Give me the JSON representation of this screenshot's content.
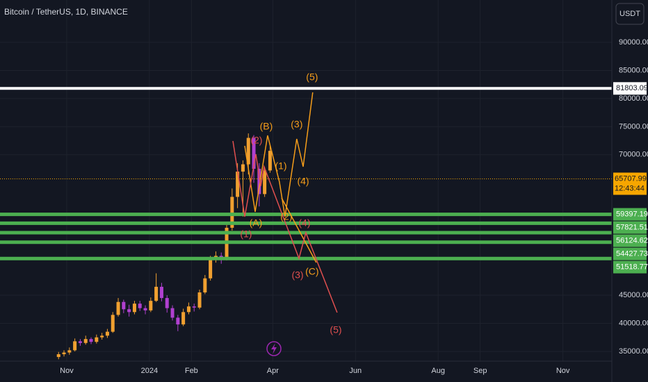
{
  "chart_data": {
    "type": "candlestick",
    "title": "Bitcoin / TetherUS, 1D, BINANCE",
    "currency": "USDT",
    "up_color": "#f0a030",
    "down_color": "#b040d0",
    "x": [
      -6,
      -2,
      2,
      6,
      10,
      14,
      18,
      22,
      26,
      30,
      34,
      38,
      42,
      46,
      50,
      54,
      58,
      62,
      66,
      70,
      74,
      78,
      82,
      86,
      90,
      94,
      98,
      102,
      106,
      110,
      114,
      118,
      122,
      126,
      130,
      134,
      138,
      142,
      146,
      150
    ],
    "ohlc": [
      [
        34000,
        34900,
        33600,
        34500
      ],
      [
        34500,
        35200,
        34100,
        34800
      ],
      [
        34800,
        35700,
        34400,
        35200
      ],
      [
        35200,
        37300,
        35000,
        36800
      ],
      [
        36800,
        37200,
        36000,
        36500
      ],
      [
        36500,
        37800,
        36200,
        37200
      ],
      [
        37200,
        37500,
        36300,
        36700
      ],
      [
        36700,
        38000,
        36400,
        37500
      ],
      [
        37500,
        38300,
        37100,
        37800
      ],
      [
        37800,
        39000,
        37400,
        38500
      ],
      [
        38500,
        42000,
        38300,
        41500
      ],
      [
        41500,
        44500,
        41200,
        43800
      ],
      [
        43800,
        44200,
        41800,
        42500
      ],
      [
        42500,
        43300,
        41200,
        42000
      ],
      [
        42000,
        44000,
        41600,
        43500
      ],
      [
        43500,
        44000,
        42200,
        42700
      ],
      [
        42700,
        43200,
        41600,
        42300
      ],
      [
        42300,
        44600,
        42000,
        44000
      ],
      [
        44000,
        48900,
        43800,
        46500
      ],
      [
        46500,
        47200,
        43900,
        44500
      ],
      [
        44500,
        45000,
        41900,
        42700
      ],
      [
        42700,
        43200,
        40500,
        41000
      ],
      [
        41000,
        41500,
        38600,
        39800
      ],
      [
        39800,
        42600,
        39500,
        42000
      ],
      [
        42000,
        43700,
        41600,
        43000
      ],
      [
        43000,
        43500,
        42100,
        42800
      ],
      [
        42800,
        46000,
        42500,
        45500
      ],
      [
        45500,
        48600,
        45200,
        48000
      ],
      [
        48000,
        52000,
        47600,
        51500
      ],
      [
        51500,
        52800,
        50800,
        52000
      ],
      [
        52000,
        52600,
        50600,
        51700
      ],
      [
        51700,
        57500,
        51200,
        57000
      ],
      [
        57000,
        64000,
        56500,
        62500
      ],
      [
        62500,
        68500,
        60500,
        67000
      ],
      [
        67000,
        69000,
        59000,
        68300
      ],
      [
        68300,
        73800,
        66500,
        73000
      ],
      [
        73000,
        73500,
        65000,
        67500
      ],
      [
        67500,
        68500,
        60800,
        63000
      ],
      [
        63000,
        67800,
        62500,
        67200
      ],
      [
        67200,
        71800,
        66800,
        70700
      ]
    ],
    "xlim": [
      -49.2,
      402.1
    ],
    "ylim": [
      29554,
      97540
    ],
    "xticks": [
      {
        "value": 0,
        "label": "Nov"
      },
      {
        "value": 61,
        "label": "2024"
      },
      {
        "value": 92,
        "label": "Feb"
      },
      {
        "value": 152,
        "label": "Apr"
      },
      {
        "value": 213,
        "label": "Jun"
      },
      {
        "value": 274,
        "label": "Aug"
      },
      {
        "value": 305,
        "label": "Sep"
      },
      {
        "value": 366,
        "label": "Nov"
      }
    ],
    "yticks": [
      {
        "value": 35000,
        "label": "35000.00"
      },
      {
        "value": 40000,
        "label": "40000.00"
      },
      {
        "value": 45000,
        "label": "45000.00"
      },
      {
        "value": 70000,
        "label": "70000.00"
      },
      {
        "value": 75000,
        "label": "75000.00"
      },
      {
        "value": 80000,
        "label": "80000.00"
      },
      {
        "value": 85000,
        "label": "85000.00"
      },
      {
        "value": 90000,
        "label": "90000.00"
      }
    ],
    "grid": true,
    "levels": [
      {
        "value": 81803.09,
        "color": "#ffffff"
      },
      {
        "value": 59397.19,
        "color": "#4caf50"
      },
      {
        "value": 57821.51,
        "color": "#4caf50"
      },
      {
        "value": 56124.62,
        "color": "#4caf50"
      },
      {
        "value": 54427.73,
        "color": "#4caf50"
      },
      {
        "value": 51518.77,
        "color": "#4caf50"
      }
    ],
    "last_price": {
      "value": 65707.99,
      "countdown": "12:43:44",
      "color": "#f7a600"
    },
    "waves": [
      {
        "color": "#f59d1a",
        "points": [
          [
            131.3,
            71584
          ],
          [
            139,
            59842
          ],
          [
            148.2,
            73438
          ],
          [
            156.9,
            65156
          ],
          [
            161,
            58976
          ],
          [
            169.7,
            72820
          ],
          [
            174.4,
            67876
          ],
          [
            181.5,
            81101
          ]
        ]
      },
      {
        "color": "#f59d1a",
        "points": [
          [
            158.5,
            62314
          ],
          [
            184.1,
            50819
          ]
        ]
      },
      {
        "color": "#e04f4f",
        "points": [
          [
            122.6,
            72449
          ],
          [
            131.3,
            58976
          ],
          [
            139.5,
            70100
          ],
          [
            143.1,
            64414
          ],
          [
            145.6,
            67876
          ],
          [
            171.3,
            51560
          ],
          [
            176.4,
            56133
          ],
          [
            199.5,
            41919
          ]
        ]
      }
    ],
    "wave_labels": [
      {
        "text": "(B)",
        "x": 147.2,
        "y": 74921,
        "color": "#f59d1a"
      },
      {
        "text": "(A)",
        "x": 139.5,
        "y": 57740,
        "color": "#f59d1a"
      },
      {
        "text": "(1)",
        "x": 158,
        "y": 67876,
        "color": "#f59d1a"
      },
      {
        "text": "(2)",
        "x": 162,
        "y": 58852,
        "color": "#f59d1a"
      },
      {
        "text": "(3)",
        "x": 169.7,
        "y": 75292,
        "color": "#f59d1a"
      },
      {
        "text": "(4)",
        "x": 174.4,
        "y": 65156,
        "color": "#f59d1a"
      },
      {
        "text": "(5)",
        "x": 181,
        "y": 83696,
        "color": "#f59d1a"
      },
      {
        "text": "(C)",
        "x": 181,
        "y": 49088,
        "color": "#f59d1a"
      },
      {
        "text": "(2)",
        "x": 140,
        "y": 72449,
        "color": "#e04f4f"
      },
      {
        "text": "(1)",
        "x": 132.3,
        "y": 55762,
        "color": "#e04f4f"
      },
      {
        "text": "(3)",
        "x": 170.3,
        "y": 48470,
        "color": "#e04f4f"
      },
      {
        "text": "(4)",
        "x": 175.4,
        "y": 57740,
        "color": "#e04f4f"
      },
      {
        "text": "(5)",
        "x": 198.5,
        "y": 38706,
        "color": "#e04f4f"
      }
    ]
  }
}
